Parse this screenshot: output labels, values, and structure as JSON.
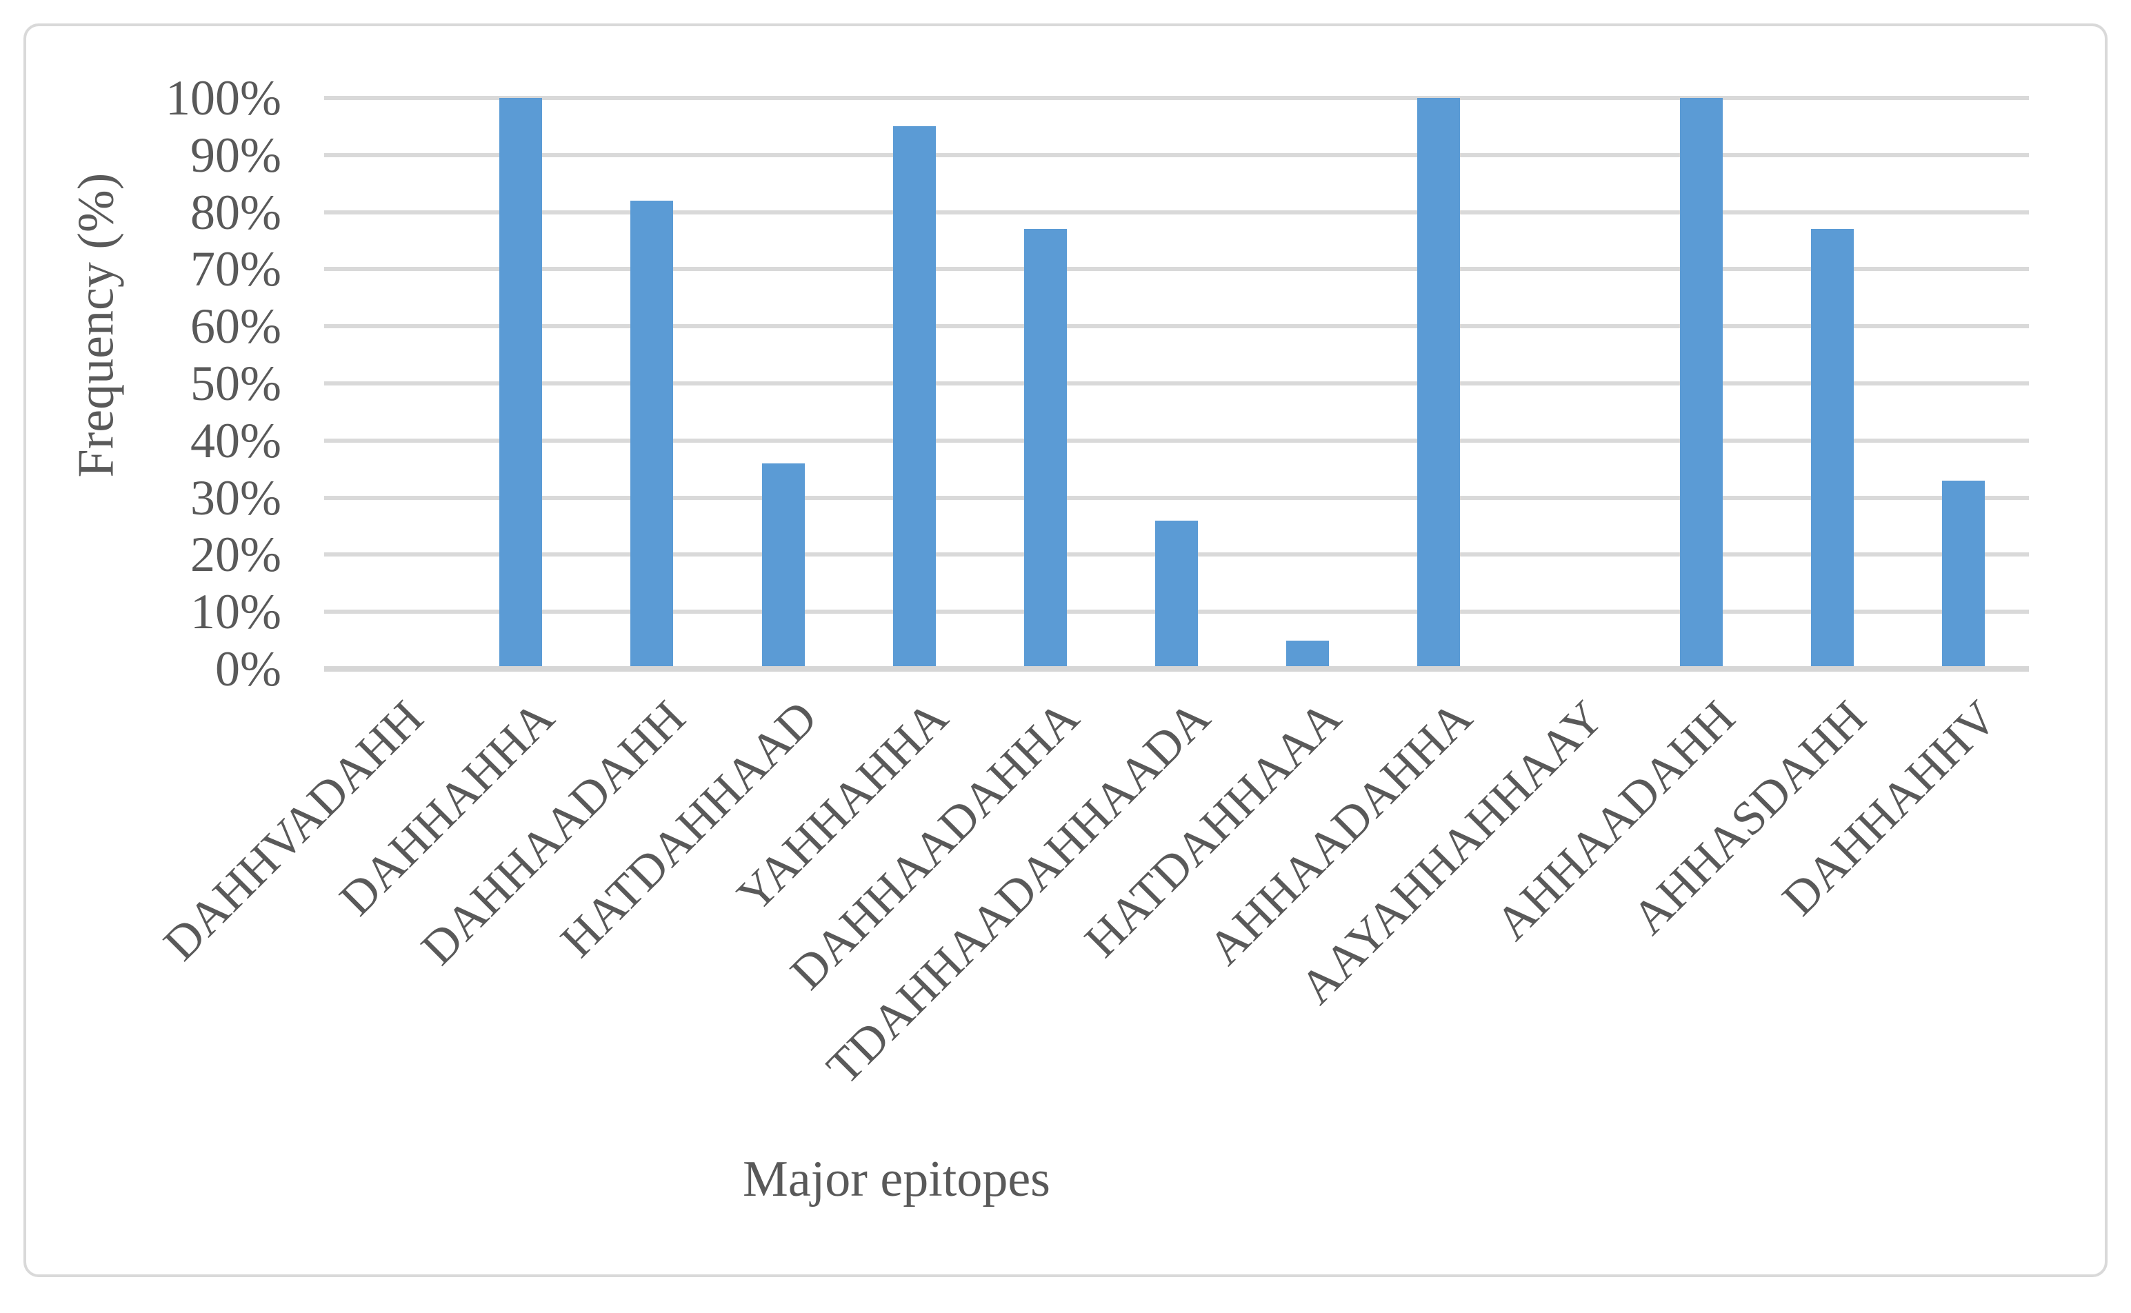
{
  "chart_data": {
    "type": "bar",
    "title": "",
    "categories": [
      "DAHHVADAHH",
      "DAHHAHHA",
      "DAHHAADAHH",
      "HATDAHHAAD",
      "YAHHAHHA",
      "DAHHAADAHHA",
      "TDAHHAADAHHAADA",
      "HATDAHHAAA",
      "AHHAADAHHA",
      "AAYAHHAHHAAY",
      "AHHAADAHH",
      "AHHASDAHH",
      "DAHHAHHV"
    ],
    "values": [
      0,
      100,
      82,
      36,
      95,
      77,
      26,
      5,
      100,
      0,
      100,
      77,
      33
    ],
    "xlabel": "Major epitopes",
    "ylabel": "Frequency (%)",
    "y_ticks": [
      "0%",
      "10%",
      "20%",
      "30%",
      "40%",
      "50%",
      "60%",
      "70%",
      "80%",
      "90%",
      "100%"
    ],
    "ylim": [
      0,
      100
    ],
    "y_tick_step": 10,
    "grid": "horizontal",
    "legend_position": "none",
    "bar_color": "#5B9BD5",
    "gridline_color": "#D9D9D9",
    "axis_line_color": "#D6D6D6",
    "text_color": "#595959",
    "figure_border_color": "#D9D9D9"
  }
}
